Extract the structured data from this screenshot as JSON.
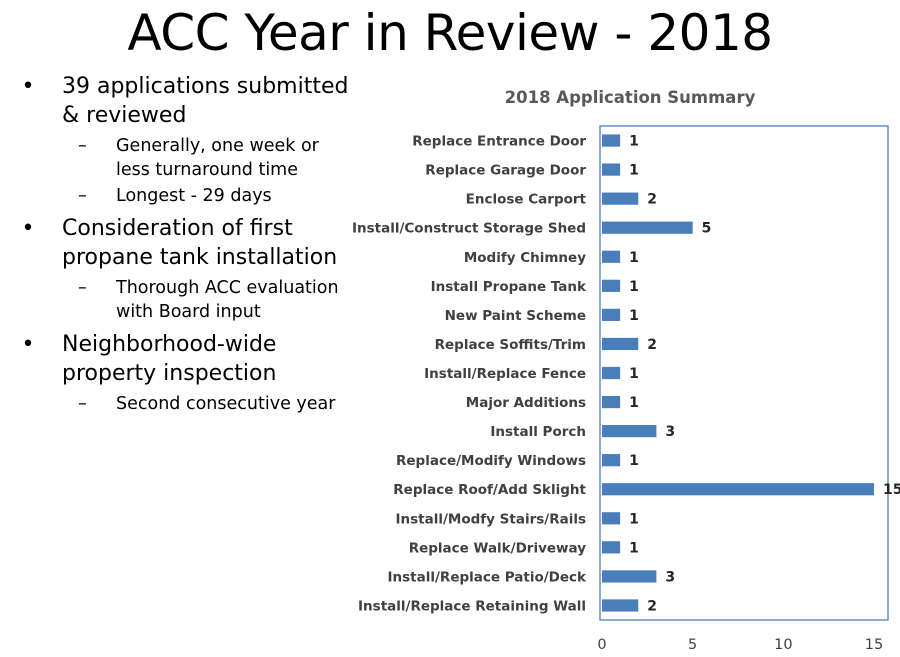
{
  "title": "ACC Year in Review - 2018",
  "bullets": [
    {
      "text": "39 applications submitted & reviewed",
      "subitems": [
        "Generally, one week or less turnaround time",
        "Longest - 29 days"
      ]
    },
    {
      "text": "Consideration of first propane tank installation",
      "subitems": [
        "Thorough ACC evaluation with Board input"
      ]
    },
    {
      "text": "Neighborhood-wide property inspection",
      "subitems": [
        "Second consecutive year"
      ]
    }
  ],
  "colors": {
    "bar": "#4a7ebb",
    "frame": "#4a7ebb",
    "axis_text": "#404040"
  },
  "chart_data": {
    "type": "bar",
    "orientation": "horizontal",
    "title": "2018 Application Summary",
    "categories": [
      "Replace Entrance Door",
      "Replace Garage Door",
      "Enclose Carport",
      "Install/Construct Storage Shed",
      "Modify Chimney",
      "Install Propane Tank",
      "New Paint Scheme",
      "Replace Soffits/Trim",
      "Install/Replace Fence",
      "Major Additions",
      "Install Porch",
      "Replace/Modify Windows",
      "Replace Roof/Add Sklight",
      "Install/Modfy Stairs/Rails",
      "Replace Walk/Driveway",
      "Install/Replace Patio/Deck",
      "Install/Replace Retaining Wall"
    ],
    "values": [
      1,
      1,
      2,
      5,
      1,
      1,
      1,
      2,
      1,
      1,
      3,
      1,
      15,
      1,
      1,
      3,
      2
    ],
    "xlim": [
      0,
      15
    ],
    "xticks": [
      0,
      5,
      10,
      15
    ],
    "grid": false,
    "data_labels": true
  }
}
